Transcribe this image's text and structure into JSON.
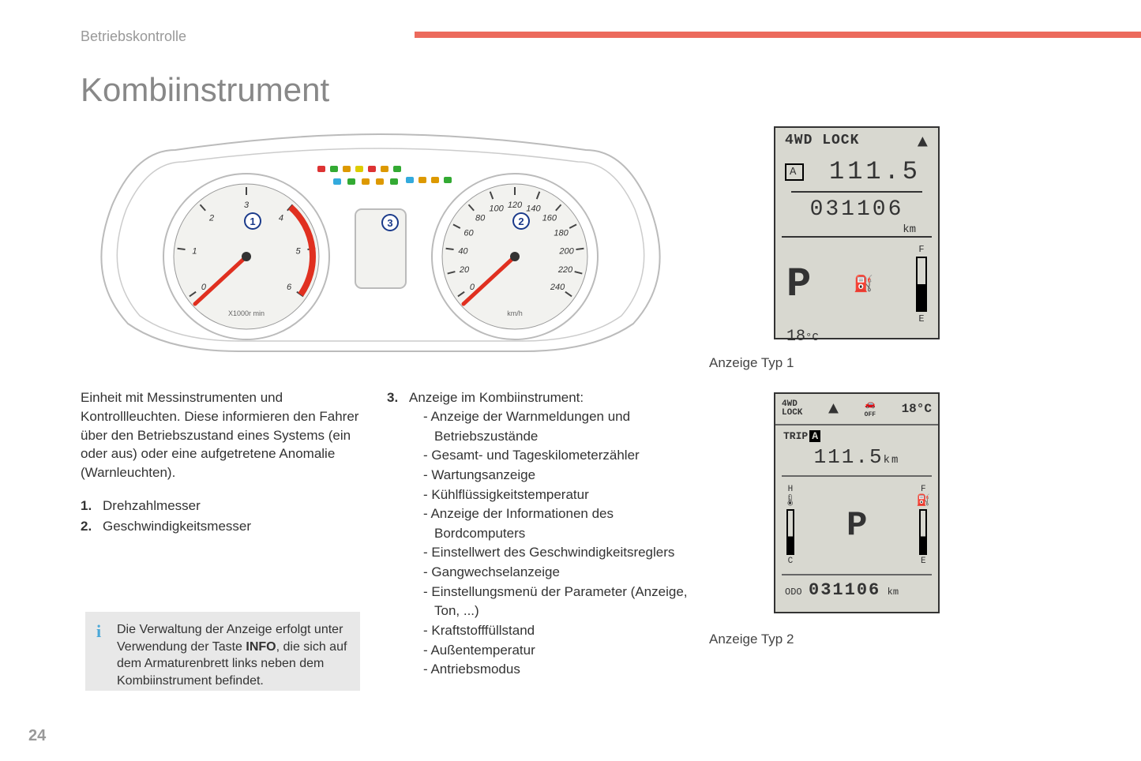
{
  "page": {
    "section_label": "Betriebskontrolle",
    "title": "Kombiinstrument",
    "page_number": "24",
    "accent_color": "#ec6a5c"
  },
  "cluster": {
    "tacho": {
      "label": "X1000r min",
      "marker": "1",
      "min": 0,
      "max": 6,
      "ticks": [
        "0",
        "1",
        "2",
        "3",
        "4",
        "5",
        "6"
      ],
      "redline_start": 4,
      "needle_color": "#e03020",
      "face_color": "#f2f2ef",
      "redzone_color": "#e03020"
    },
    "speedo": {
      "label": "km/h",
      "marker": "2",
      "min": 0,
      "max": 240,
      "ticks": [
        "0",
        "20",
        "40",
        "60",
        "80",
        "100",
        "120",
        "140",
        "160",
        "180",
        "200",
        "220",
        "240"
      ],
      "needle_color": "#e03020",
      "face_color": "#f2f2ef"
    },
    "center_display": {
      "marker": "3"
    },
    "indicator_colors": [
      "#d33",
      "#3a3",
      "#d90",
      "#dc0",
      "#d33",
      "#d90",
      "#3a3",
      "#3ad",
      "#d90",
      "#d90",
      "#3a3"
    ]
  },
  "display1": {
    "caption": "Anzeige Typ 1",
    "mode": "4WD LOCK",
    "trip_icon": "A",
    "trip_value": "111.5",
    "odo_value": "031106",
    "unit": "km",
    "gear": "P",
    "fuel_top": "F",
    "fuel_bottom": "E",
    "temp": "18",
    "temp_unit": "°C",
    "bg_color": "#d8d8d0"
  },
  "display2": {
    "caption": "Anzeige Typ 2",
    "mode": "4WD\nLOCK",
    "esc_label": "OFF",
    "temp": "18°C",
    "trip_label": "TRIP A",
    "trip_value": "111.5",
    "trip_unit": "km",
    "gauge_left_top": "H",
    "gauge_left_bottom": "C",
    "gauge_right_top": "F",
    "gauge_right_bottom": "E",
    "gear": "P",
    "odo_label": "ODO",
    "odo_value": "031106",
    "odo_unit": "km",
    "bg_color": "#d8d8d0"
  },
  "text": {
    "intro": "Einheit mit Messinstrumenten und Kontrollleuchten. Diese informieren den Fahrer über den Betriebszustand eines Systems (ein oder aus) oder eine aufgetretene Anomalie (Warnleuchten).",
    "item1_num": "1.",
    "item1": "Drehzahlmesser",
    "item2_num": "2.",
    "item2": "Geschwindigkeitsmesser",
    "item3_num": "3.",
    "item3_head": "Anzeige im Kombiinstrument:",
    "sub": [
      "Anzeige der Warnmeldungen und Betriebszustände",
      "Gesamt- und Tageskilometerzähler",
      "Wartungsanzeige",
      "Kühlflüssigkeitstemperatur",
      "Anzeige der Informationen des Bordcomputers",
      "Einstellwert des Geschwindigkeitsreglers",
      "Gangwechselanzeige",
      "Einstellungsmenü der Parameter (Anzeige, Ton, ...)",
      "Kraftstofffüllstand",
      "Außentemperatur",
      "Antriebsmodus"
    ],
    "info_box_pre": "Die Verwaltung der Anzeige erfolgt unter Verwendung der Taste ",
    "info_box_bold": "INFO",
    "info_box_post": ", die sich auf dem Armaturenbrett links neben dem Kombiinstrument befindet."
  }
}
